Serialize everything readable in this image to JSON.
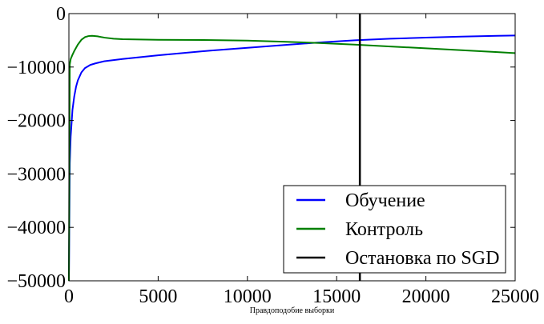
{
  "chart_data": {
    "type": "line",
    "title": "",
    "xlabel": "Правдоподобие выборки",
    "ylabel": "",
    "xlim": [
      0,
      25000
    ],
    "ylim": [
      -50000,
      0
    ],
    "xticks": [
      "0",
      "5000",
      "10000",
      "15000",
      "20000",
      "25000"
    ],
    "xtick_values": [
      0,
      5000,
      10000,
      15000,
      20000,
      25000
    ],
    "yticks": [
      "0",
      "−10000",
      "−20000",
      "−30000",
      "−40000",
      "−50000"
    ],
    "ytick_values": [
      0,
      -10000,
      -20000,
      -30000,
      -40000,
      -50000
    ],
    "grid": false,
    "legend_position": "lower-right",
    "series": [
      {
        "name": "Обучение",
        "color": "#0000ff",
        "x": [
          0,
          50,
          100,
          200,
          300,
          400,
          500,
          700,
          900,
          1200,
          1500,
          2000,
          3000,
          5000,
          8000,
          10000,
          12000,
          14000,
          16000,
          18000,
          20000,
          22000,
          24000,
          25000
        ],
        "y": [
          -50000,
          -28000,
          -23000,
          -18000,
          -15500,
          -13700,
          -12500,
          -11000,
          -10200,
          -9600,
          -9300,
          -8900,
          -8500,
          -7800,
          -6900,
          -6400,
          -5900,
          -5400,
          -5000,
          -4700,
          -4500,
          -4300,
          -4150,
          -4100
        ]
      },
      {
        "name": "Контроль",
        "color": "#008000",
        "x": [
          0,
          50,
          100,
          200,
          300,
          400,
          500,
          700,
          900,
          1100,
          1300,
          1600,
          2000,
          2500,
          3000,
          5000,
          8000,
          10000,
          12000,
          14000,
          16000,
          18000,
          20000,
          22000,
          24000,
          25000
        ],
        "y": [
          -50000,
          -9500,
          -8500,
          -7700,
          -7000,
          -6400,
          -5800,
          -4900,
          -4400,
          -4200,
          -4150,
          -4250,
          -4500,
          -4700,
          -4800,
          -4900,
          -4950,
          -5050,
          -5250,
          -5500,
          -5800,
          -6150,
          -6500,
          -6850,
          -7200,
          -7400
        ]
      },
      {
        "name": "Остановка по SGD",
        "color": "#000000",
        "x": [
          16300,
          16300
        ],
        "y": [
          0,
          -50000
        ]
      }
    ]
  }
}
